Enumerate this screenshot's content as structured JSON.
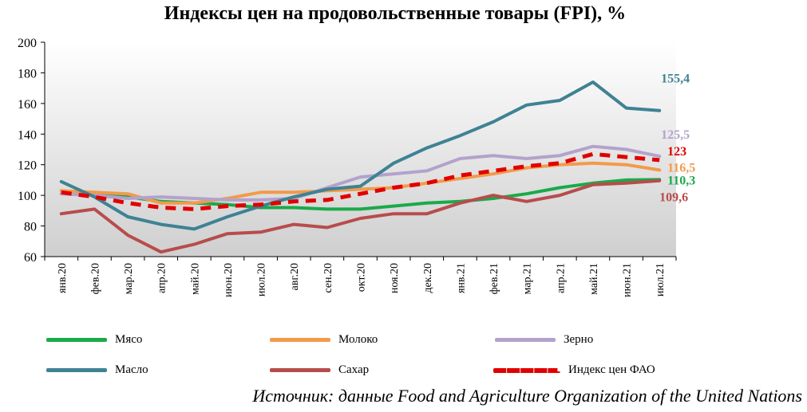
{
  "chart_data": {
    "type": "line",
    "title": "Индексы цен на продовольственные товары (FPI), %",
    "ylim": [
      60,
      200
    ],
    "yticks": [
      60,
      80,
      100,
      120,
      140,
      160,
      180,
      200
    ],
    "grid": false,
    "legend_position": "bottom",
    "categories": [
      "янв.20",
      "фев.20",
      "мар.20",
      "апр.20",
      "май.20",
      "июн.20",
      "июл.20",
      "авг.20",
      "сен.20",
      "окт.20",
      "ноя.20",
      "дек.20",
      "янв.21",
      "фев.21",
      "мар.21",
      "апр.21",
      "май.21",
      "июн.21",
      "июл.21"
    ],
    "series": [
      {
        "name": "Мясо",
        "color": "#1aaa4a",
        "style": "solid",
        "values": [
          103,
          101,
          99,
          96,
          95,
          94,
          92,
          92,
          91,
          91,
          93,
          95,
          96,
          98,
          101,
          105,
          108,
          110,
          110.3
        ],
        "end_label": "110,3"
      },
      {
        "name": "Молоко",
        "color": "#f39a4a",
        "style": "solid",
        "values": [
          103,
          102,
          101,
          95,
          95,
          98,
          102,
          102,
          103,
          104,
          105,
          108,
          111,
          114,
          118,
          120,
          121,
          120,
          116.5
        ],
        "end_label": "116,5"
      },
      {
        "name": "Зерно",
        "color": "#b3a2cc",
        "style": "solid",
        "values": [
          101,
          100,
          98,
          99,
          98,
          97,
          97,
          98,
          105,
          112,
          114,
          116,
          124,
          126,
          124,
          126,
          132,
          130,
          125.5
        ],
        "end_label": "125,5"
      },
      {
        "name": "Масло",
        "color": "#3e8294",
        "style": "solid",
        "values": [
          109,
          99,
          86,
          81,
          78,
          86,
          93,
          99,
          104,
          106,
          121,
          131,
          139,
          148,
          159,
          162,
          174,
          157,
          155.4
        ],
        "end_label": "155,4"
      },
      {
        "name": "Сахар",
        "color": "#b84c4c",
        "style": "solid",
        "values": [
          88,
          91,
          74,
          63,
          68,
          75,
          76,
          81,
          79,
          85,
          88,
          88,
          95,
          100,
          96,
          100,
          107,
          108,
          109.6
        ],
        "end_label": "109,6"
      },
      {
        "name": "Индекс цен ФАО",
        "color": "#e00000",
        "style": "dashed",
        "values": [
          102,
          99,
          95,
          92,
          91,
          93,
          94,
          96,
          97,
          101,
          105,
          108,
          113,
          116,
          119,
          121,
          127,
          125,
          123
        ],
        "end_label": "123"
      }
    ],
    "source": "Источник: данные Food and Agriculture Organization of the United Nations"
  }
}
